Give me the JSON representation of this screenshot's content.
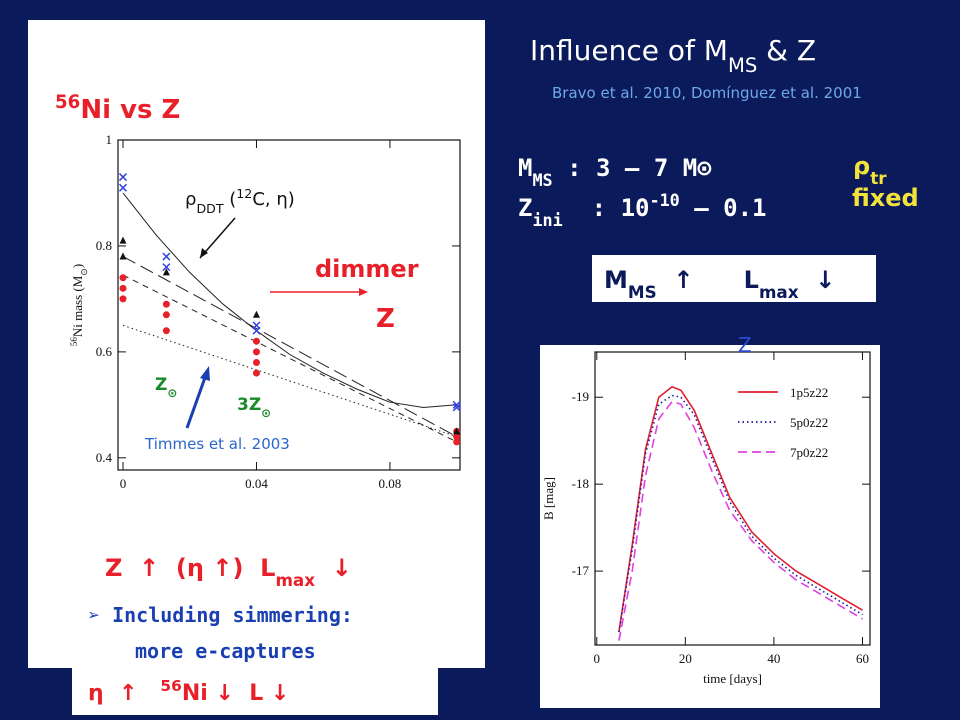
{
  "slide": {
    "title": [
      "Influence of M",
      "MS",
      " & Z"
    ],
    "reference": "Bravo et al. 2010, Domínguez et al. 2001",
    "mass_range": [
      "M",
      "MS",
      " : 3 – 7 M",
      "⊙"
    ],
    "z_range": [
      "Z",
      "ini",
      "  : 10",
      "-10",
      " – 0.1"
    ],
    "rho": [
      "ρ",
      "tr"
    ],
    "fixed": "fixed",
    "box": [
      "M",
      "MS",
      "  ↑      L",
      "max",
      "  ↓"
    ],
    "hidden_z": "Z"
  },
  "left_panel": {
    "heading": [
      "56",
      "Ni vs Z"
    ],
    "rho_label": [
      "ρ",
      "DDT",
      " (",
      "12",
      "C, η)"
    ],
    "dimmer": "dimmer",
    "z_arrow": "Z",
    "z_sun": [
      "Z",
      "⊙"
    ],
    "z3": [
      "3Z",
      "⊙"
    ],
    "timmes": "Timmes et al. 2003",
    "conclusion": [
      "Z  ↑  (η ↑)  L",
      "max",
      "  ↓"
    ],
    "simmering": [
      "➢ ",
      "Including simmering:"
    ],
    "ecaptures": "more e-captures",
    "result": [
      "η  ↑   ",
      "56",
      "Ni ↓  L ↓"
    ]
  },
  "figure_left": {
    "y_label": [
      "56",
      "Ni mass (M",
      "⊙",
      ")"
    ],
    "xlim": [
      -0.0015,
      0.101
    ],
    "xticks": [
      0,
      0.04,
      0.08
    ],
    "ylim": [
      0.377,
      1
    ],
    "yticks": [
      0.4,
      0.6,
      0.8,
      1
    ],
    "series": [
      {
        "color": "#e8202a",
        "marker": "circle",
        "x": [
          0,
          0,
          0,
          0.013,
          0.013,
          0.013,
          0.04,
          0.04,
          0.04,
          0.04,
          0.1,
          0.1,
          0.1
        ],
        "values": [
          0.74,
          0.72,
          0.7,
          0.69,
          0.67,
          0.64,
          0.62,
          0.6,
          0.58,
          0.56,
          0.45,
          0.44,
          0.43
        ]
      },
      {
        "color": "#111111",
        "marker": "triangle",
        "x": [
          0,
          0,
          0.013,
          0.04,
          0.1
        ],
        "values": [
          0.81,
          0.78,
          0.75,
          0.67,
          0.45
        ]
      },
      {
        "color": "#3344dd",
        "marker": "cross",
        "x": [
          0,
          0,
          0.013,
          0.013,
          0.04,
          0.04,
          0.1,
          0.1
        ],
        "values": [
          0.93,
          0.91,
          0.78,
          0.76,
          0.65,
          0.64,
          0.5,
          0.495
        ]
      }
    ],
    "curves": [
      {
        "style": "solid",
        "x": [
          0,
          0.01,
          0.02,
          0.03,
          0.04,
          0.05,
          0.06,
          0.07,
          0.08,
          0.09,
          0.1
        ],
        "values": [
          0.9,
          0.82,
          0.75,
          0.69,
          0.64,
          0.595,
          0.56,
          0.53,
          0.505,
          0.495,
          0.5
        ]
      },
      {
        "style": "long-dash",
        "x": [
          0,
          0.1
        ],
        "values": [
          0.78,
          0.44
        ]
      },
      {
        "style": "short-dash",
        "x": [
          0,
          0.1
        ],
        "values": [
          0.745,
          0.43
        ]
      },
      {
        "style": "dotted",
        "x": [
          0,
          0.1
        ],
        "values": [
          0.65,
          0.44
        ]
      }
    ]
  },
  "figure_right": {
    "x_label": "time [days]",
    "y_label": "B [mag]",
    "xlim": [
      -0.4,
      61.7
    ],
    "xticks": [
      0,
      20,
      40,
      60
    ],
    "ylim": [
      -16.15,
      -19.52
    ],
    "yticks": [
      -19,
      -18,
      -17
    ],
    "x": [
      5,
      8,
      11,
      14,
      17,
      19,
      22,
      26,
      30,
      35,
      40,
      45,
      50,
      55,
      60
    ],
    "series": [
      {
        "name": "1p5z22",
        "color": "#e02030",
        "style": "solid",
        "values": [
          -16.3,
          -17.3,
          -18.4,
          -19.0,
          -19.12,
          -19.08,
          -18.85,
          -18.35,
          -17.85,
          -17.45,
          -17.2,
          -17.0,
          -16.85,
          -16.7,
          -16.55
        ]
      },
      {
        "name": "5p0z22",
        "color": "#1a1aa0",
        "style": "dotted",
        "values": [
          -16.3,
          -17.25,
          -18.35,
          -18.92,
          -19.02,
          -19.0,
          -18.8,
          -18.3,
          -17.8,
          -17.4,
          -17.15,
          -16.95,
          -16.8,
          -16.65,
          -16.5
        ]
      },
      {
        "name": "7p0z22",
        "color": "#e040e0",
        "style": "dashed",
        "values": [
          -16.2,
          -17.0,
          -18.1,
          -18.75,
          -18.95,
          -18.92,
          -18.65,
          -18.15,
          -17.7,
          -17.35,
          -17.1,
          -16.9,
          -16.75,
          -16.6,
          -16.45
        ]
      }
    ]
  }
}
